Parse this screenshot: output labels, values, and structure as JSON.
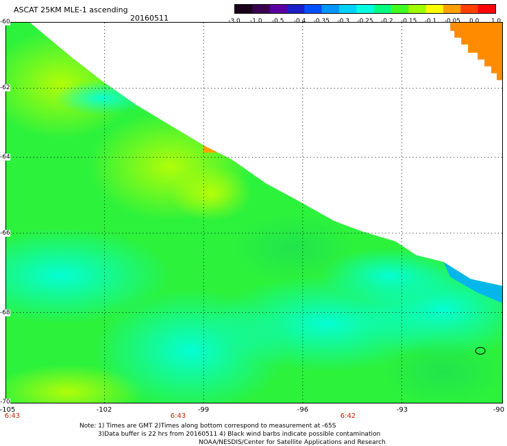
{
  "title": "ASCAT 25KM MLE-1 ascending",
  "date": "20160511",
  "colorbar": {
    "labels": [
      "-3.0",
      "-1.0",
      "-0.5",
      "-0.4",
      "-0.35",
      "-0.3",
      "-0.25",
      "-0.2",
      "-0.15",
      "-0.1",
      "-0.05",
      "0.0",
      "1.0"
    ],
    "colors": [
      "#1a001a",
      "#3a0050",
      "#5a00a0",
      "#1e1ec8",
      "#0050ff",
      "#0096ff",
      "#00d2ff",
      "#00ffe0",
      "#00ff80",
      "#40ff20",
      "#a0ff00",
      "#ffff00",
      "#ffa000",
      "#ff4000",
      "#ff0000"
    ]
  },
  "map": {
    "lat_labels": [
      "-60",
      "-62",
      "-64",
      "-66",
      "-68",
      "-70"
    ],
    "lon_labels": [
      "-105",
      "-102",
      "-99",
      "-96",
      "-93",
      "-90"
    ],
    "time_labels": [
      "6:43",
      "6:43",
      "6:42"
    ],
    "lon_range": [
      -105,
      -90
    ],
    "lat_range": [
      -70,
      -60
    ]
  },
  "notes": {
    "line1": "Note: 1) Times are GMT 2)Times along bottom correspond to measurement at -65S",
    "line2": "3)Data buffer is 22 hrs from 20160511 4) Black wind barbs indicate possible contamination",
    "line3": "NOAA/NESDIS/Center for Satellite Applications and Research"
  }
}
